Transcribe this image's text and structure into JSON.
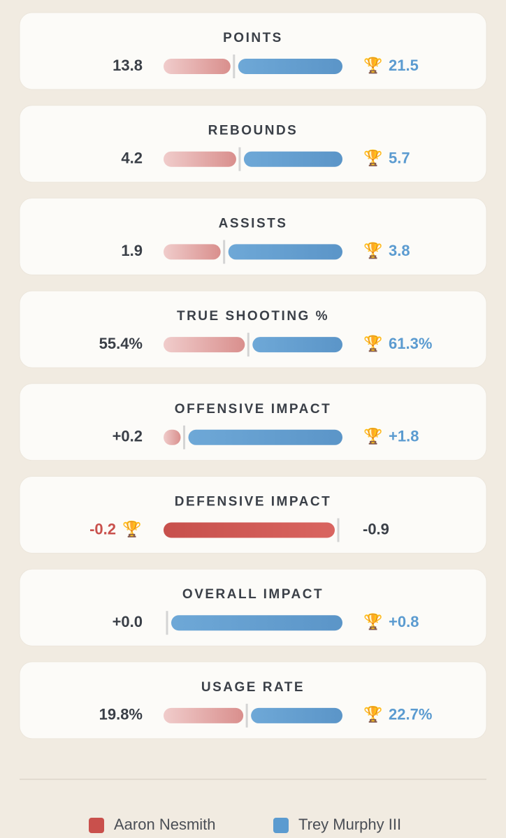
{
  "players": [
    {
      "name": "Aaron Nesmith",
      "color": "#c9504c"
    },
    {
      "name": "Trey Murphy III",
      "color": "#5b9bd0"
    }
  ],
  "rows": [
    {
      "label": "POINTS",
      "left": {
        "value": 13.8,
        "label": "13.8"
      },
      "right": {
        "value": 21.5,
        "label": "21.5"
      },
      "winner": "right"
    },
    {
      "label": "REBOUNDS",
      "left": {
        "value": 4.2,
        "label": "4.2"
      },
      "right": {
        "value": 5.7,
        "label": "5.7"
      },
      "winner": "right"
    },
    {
      "label": "ASSISTS",
      "left": {
        "value": 1.9,
        "label": "1.9"
      },
      "right": {
        "value": 3.8,
        "label": "3.8"
      },
      "winner": "right"
    },
    {
      "label": "TRUE SHOOTING %",
      "left": {
        "value": 55.4,
        "label": "55.4%"
      },
      "right": {
        "value": 61.3,
        "label": "61.3%"
      },
      "winner": "right"
    },
    {
      "label": "OFFENSIVE IMPACT",
      "left": {
        "value": 0.2,
        "label": "+0.2"
      },
      "right": {
        "value": 1.8,
        "label": "+1.8"
      },
      "winner": "right"
    },
    {
      "label": "DEFENSIVE IMPACT",
      "left": {
        "value": -0.2,
        "label": "-0.2"
      },
      "right": {
        "value": -0.9,
        "label": "-0.9"
      },
      "winner": "left"
    },
    {
      "label": "OVERALL IMPACT",
      "left": {
        "value": 0.0,
        "label": "+0.0"
      },
      "right": {
        "value": 0.8,
        "label": "+0.8"
      },
      "winner": "right"
    },
    {
      "label": "USAGE RATE",
      "left": {
        "value": 19.8,
        "label": "19.8%"
      },
      "right": {
        "value": 22.7,
        "label": "22.7%"
      },
      "winner": "right"
    }
  ]
}
